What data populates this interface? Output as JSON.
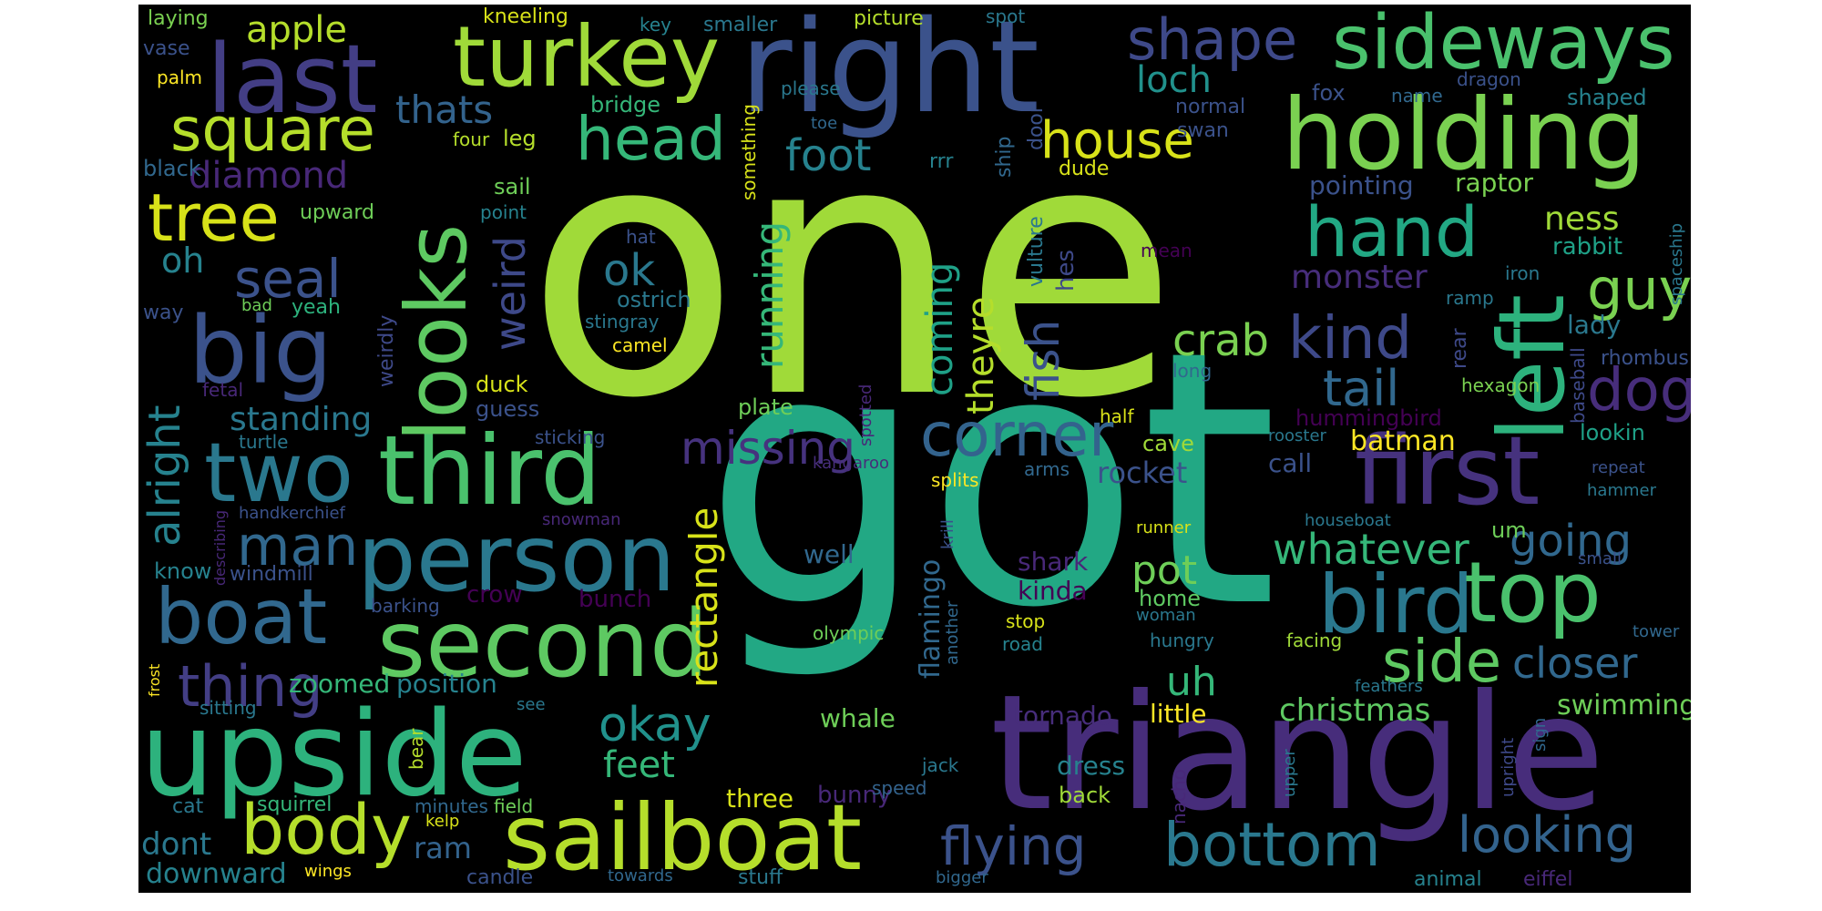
{
  "palette": {
    "yellow": "#fde725",
    "lime": "#b5de2b",
    "green": "#6ece58",
    "light-green": "#35b779",
    "teal": "#1f9e89",
    "cyan": "#26828e",
    "blue": "#31688e",
    "indigo": "#3e4989",
    "violet": "#482878",
    "purple": "#440154"
  },
  "words": [
    {
      "text": "one",
      "color": "#a0da39"
    },
    {
      "text": "got",
      "color": "#22a884"
    },
    {
      "text": "triangle",
      "color": "#472d7b"
    },
    {
      "text": "right",
      "color": "#3b528b"
    },
    {
      "text": "upside",
      "color": "#2db27d"
    },
    {
      "text": "sailboat",
      "color": "#b5de2b"
    },
    {
      "text": "second",
      "color": "#5ec962"
    },
    {
      "text": "third",
      "color": "#4ac16d"
    },
    {
      "text": "person",
      "color": "#2a788e"
    },
    {
      "text": "holding",
      "color": "#7ad151"
    },
    {
      "text": "first",
      "color": "#46327e"
    },
    {
      "text": "turkey",
      "color": "#a0da39"
    },
    {
      "text": "last",
      "color": "#433e85"
    },
    {
      "text": "sideways",
      "color": "#4ac16d"
    },
    {
      "text": "looks",
      "color": "#5ec962"
    },
    {
      "text": "left",
      "color": "#2db27d"
    },
    {
      "text": "big",
      "color": "#3b528b"
    },
    {
      "text": "two",
      "color": "#2a788e"
    },
    {
      "text": "boat",
      "color": "#31688e"
    },
    {
      "text": "body",
      "color": "#b5de2b"
    },
    {
      "text": "bird",
      "color": "#2a788e"
    },
    {
      "text": "top",
      "color": "#4ac16d"
    },
    {
      "text": "bottom",
      "color": "#2a788e"
    },
    {
      "text": "square",
      "color": "#b5de2b"
    },
    {
      "text": "head",
      "color": "#35b779"
    },
    {
      "text": "hand",
      "color": "#22a884"
    },
    {
      "text": "tree",
      "color": "#d8e219"
    },
    {
      "text": "house",
      "color": "#d8e219"
    },
    {
      "text": "shape",
      "color": "#3e4989"
    },
    {
      "text": "corner",
      "color": "#33638d"
    },
    {
      "text": "side",
      "color": "#5ec962"
    },
    {
      "text": "thing",
      "color": "#433e85"
    },
    {
      "text": "man",
      "color": "#31688e"
    },
    {
      "text": "looking",
      "color": "#33638d"
    },
    {
      "text": "flying",
      "color": "#3b528b"
    },
    {
      "text": "missing",
      "color": "#46327e"
    },
    {
      "text": "kind",
      "color": "#3e4989"
    },
    {
      "text": "dog",
      "color": "#472d7b"
    },
    {
      "text": "guy",
      "color": "#7ad151"
    },
    {
      "text": "seal",
      "color": "#3b528b"
    },
    {
      "text": "tail",
      "color": "#31688e"
    },
    {
      "text": "okay",
      "color": "#21918c"
    },
    {
      "text": "crab",
      "color": "#7ad151"
    },
    {
      "text": "fish",
      "color": "#3b528b"
    },
    {
      "text": "foot",
      "color": "#26828e"
    },
    {
      "text": "weird",
      "color": "#3e4989"
    },
    {
      "text": "whatever",
      "color": "#35b779"
    },
    {
      "text": "going",
      "color": "#31688e"
    },
    {
      "text": "closer",
      "color": "#31688e"
    },
    {
      "text": "feet",
      "color": "#35b779"
    },
    {
      "text": "ok",
      "color": "#2a788e"
    },
    {
      "text": "apple",
      "color": "#b5de2b"
    },
    {
      "text": "loch",
      "color": "#21918c"
    },
    {
      "text": "thats",
      "color": "#33638d"
    },
    {
      "text": "running",
      "color": "#35b779"
    },
    {
      "text": "coming",
      "color": "#1fa187"
    },
    {
      "text": "theyre",
      "color": "#b5de2b"
    },
    {
      "text": "rectangle",
      "color": "#d8e219"
    },
    {
      "text": "pot",
      "color": "#6ece58"
    },
    {
      "text": "uh",
      "color": "#35b779"
    },
    {
      "text": "diamond",
      "color": "#482878"
    },
    {
      "text": "monster",
      "color": "#472d7b"
    },
    {
      "text": "ness",
      "color": "#a0da39"
    },
    {
      "text": "rocket",
      "color": "#3b528b"
    },
    {
      "text": "christmas",
      "color": "#5ec962"
    },
    {
      "text": "swimming",
      "color": "#6ece58"
    },
    {
      "text": "alright",
      "color": "#26828e"
    },
    {
      "text": "standing",
      "color": "#2a788e"
    },
    {
      "text": "oh",
      "color": "#26828e"
    },
    {
      "text": "downward",
      "color": "#26828e"
    },
    {
      "text": "dont",
      "color": "#2a788e"
    },
    {
      "text": "ram",
      "color": "#33638d"
    },
    {
      "text": "batman",
      "color": "#fde725"
    },
    {
      "text": "little",
      "color": "#fde725"
    },
    {
      "text": "pointing",
      "color": "#3b528b"
    },
    {
      "text": "raptor",
      "color": "#7ad151"
    },
    {
      "text": "flamingo",
      "color": "#31688e"
    },
    {
      "text": "whale",
      "color": "#6ece58"
    },
    {
      "text": "zoomed",
      "color": "#35b779"
    },
    {
      "text": "position",
      "color": "#26828e"
    },
    {
      "text": "well",
      "color": "#31688e"
    },
    {
      "text": "three",
      "color": "#d8e219"
    },
    {
      "text": "bunny",
      "color": "#482878"
    },
    {
      "text": "shark",
      "color": "#482878"
    },
    {
      "text": "kinda",
      "color": "#440154"
    },
    {
      "text": "tornado",
      "color": "#472d7b"
    },
    {
      "text": "dress",
      "color": "#26828e"
    },
    {
      "text": "back",
      "color": "#a0da39"
    },
    {
      "text": "crow",
      "color": "#440154"
    },
    {
      "text": "bunch",
      "color": "#440154"
    },
    {
      "text": "home",
      "color": "#5ec962"
    },
    {
      "text": "rabbit",
      "color": "#1fa187"
    },
    {
      "text": "lady",
      "color": "#2a788e"
    },
    {
      "text": "hummingbird",
      "color": "#440154"
    },
    {
      "text": "lookin",
      "color": "#1fa187"
    },
    {
      "text": "cave",
      "color": "#a0da39"
    },
    {
      "text": "call",
      "color": "#3b528b"
    },
    {
      "text": "laying",
      "color": "#7ad151"
    },
    {
      "text": "kneeling",
      "color": "#d8e219"
    },
    {
      "text": "key",
      "color": "#26828e"
    },
    {
      "text": "smaller",
      "color": "#2a788e"
    },
    {
      "text": "picture",
      "color": "#b5de2b"
    },
    {
      "text": "spot",
      "color": "#2a788e"
    },
    {
      "text": "vase",
      "color": "#3b528b"
    },
    {
      "text": "palm",
      "color": "#fde725"
    },
    {
      "text": "bridge",
      "color": "#35b779"
    },
    {
      "text": "please",
      "color": "#2a788e"
    },
    {
      "text": "fox",
      "color": "#3b528b"
    },
    {
      "text": "name",
      "color": "#31688e"
    },
    {
      "text": "dragon",
      "color": "#3b528b"
    },
    {
      "text": "shaped",
      "color": "#26828e"
    },
    {
      "text": "normal",
      "color": "#3b528b"
    },
    {
      "text": "swan",
      "color": "#3b528b"
    },
    {
      "text": "toe",
      "color": "#31688e"
    },
    {
      "text": "four",
      "color": "#b5de2b"
    },
    {
      "text": "leg",
      "color": "#b5de2b"
    },
    {
      "text": "black",
      "color": "#31688e"
    },
    {
      "text": "something",
      "color": "#d8e219"
    },
    {
      "text": "rrr",
      "color": "#26828e"
    },
    {
      "text": "ship",
      "color": "#31688e"
    },
    {
      "text": "door",
      "color": "#3b528b"
    },
    {
      "text": "dude",
      "color": "#d8e219"
    },
    {
      "text": "sail",
      "color": "#6ece58"
    },
    {
      "text": "upward",
      "color": "#6ece58"
    },
    {
      "text": "point",
      "color": "#26828e"
    },
    {
      "text": "hat",
      "color": "#3b528b"
    },
    {
      "text": "vulture",
      "color": "#2a788e"
    },
    {
      "text": "hes",
      "color": "#3e4989"
    },
    {
      "text": "mean",
      "color": "#440154"
    },
    {
      "text": "iron",
      "color": "#2a788e"
    },
    {
      "text": "ramp",
      "color": "#2a788e"
    },
    {
      "text": "spaceship",
      "color": "#2a788e"
    },
    {
      "text": "baseball",
      "color": "#3e4989"
    },
    {
      "text": "rhombus",
      "color": "#3b528b"
    },
    {
      "text": "rear",
      "color": "#3e4989"
    },
    {
      "text": "hexagon",
      "color": "#7ad151"
    },
    {
      "text": "long",
      "color": "#31688e"
    },
    {
      "text": "half",
      "color": "#d8e219"
    },
    {
      "text": "way",
      "color": "#3b528b"
    },
    {
      "text": "bad",
      "color": "#6ece58"
    },
    {
      "text": "yeah",
      "color": "#2db27d"
    },
    {
      "text": "ostrich",
      "color": "#2a788e"
    },
    {
      "text": "stingray",
      "color": "#2a788e"
    },
    {
      "text": "camel",
      "color": "#fde725"
    },
    {
      "text": "weirdly",
      "color": "#3e4989"
    },
    {
      "text": "fetal",
      "color": "#482878"
    },
    {
      "text": "duck",
      "color": "#d8e219"
    },
    {
      "text": "guess",
      "color": "#3b528b"
    },
    {
      "text": "plate",
      "color": "#6ece58"
    },
    {
      "text": "spotted",
      "color": "#482878"
    },
    {
      "text": "turtle",
      "color": "#2a788e"
    },
    {
      "text": "sticking",
      "color": "#3b528b"
    },
    {
      "text": "kangaroo",
      "color": "#472d7b"
    },
    {
      "text": "splits",
      "color": "#fde725"
    },
    {
      "text": "arms",
      "color": "#31688e"
    },
    {
      "text": "rooster",
      "color": "#2a788e"
    },
    {
      "text": "repeat",
      "color": "#3b528b"
    },
    {
      "text": "hammer",
      "color": "#2a788e"
    },
    {
      "text": "handkerchief",
      "color": "#3b528b"
    },
    {
      "text": "snowman",
      "color": "#482878"
    },
    {
      "text": "describing",
      "color": "#482878"
    },
    {
      "text": "krill",
      "color": "#3b528b"
    },
    {
      "text": "runner",
      "color": "#d8e219"
    },
    {
      "text": "houseboat",
      "color": "#2a788e"
    },
    {
      "text": "um",
      "color": "#6ece58"
    },
    {
      "text": "small",
      "color": "#3b528b"
    },
    {
      "text": "know",
      "color": "#26828e"
    },
    {
      "text": "windmill",
      "color": "#3b528b"
    },
    {
      "text": "barking",
      "color": "#3b528b"
    },
    {
      "text": "woman",
      "color": "#2a788e"
    },
    {
      "text": "tower",
      "color": "#31688e"
    },
    {
      "text": "stop",
      "color": "#d8e219"
    },
    {
      "text": "road",
      "color": "#26828e"
    },
    {
      "text": "hungry",
      "color": "#2a788e"
    },
    {
      "text": "facing",
      "color": "#a0da39"
    },
    {
      "text": "olympic",
      "color": "#6ece58"
    },
    {
      "text": "another",
      "color": "#31688e"
    },
    {
      "text": "feathers",
      "color": "#2a788e"
    },
    {
      "text": "frost",
      "color": "#fde725"
    },
    {
      "text": "sitting",
      "color": "#2a788e"
    },
    {
      "text": "see",
      "color": "#2a788e"
    },
    {
      "text": "upright",
      "color": "#3e4989"
    },
    {
      "text": "sign",
      "color": "#31688e"
    },
    {
      "text": "bear",
      "color": "#b5de2b"
    },
    {
      "text": "jack",
      "color": "#2a788e"
    },
    {
      "text": "speed",
      "color": "#33638d"
    },
    {
      "text": "nacho",
      "color": "#482878"
    },
    {
      "text": "upper",
      "color": "#2a788e"
    },
    {
      "text": "cat",
      "color": "#2a788e"
    },
    {
      "text": "squirrel",
      "color": "#35b779"
    },
    {
      "text": "minutes",
      "color": "#31688e"
    },
    {
      "text": "field",
      "color": "#6ece58"
    },
    {
      "text": "kelp",
      "color": "#d8e219"
    },
    {
      "text": "wings",
      "color": "#fde725"
    },
    {
      "text": "candle",
      "color": "#3b528b"
    },
    {
      "text": "towards",
      "color": "#31688e"
    },
    {
      "text": "stuff",
      "color": "#2a788e"
    },
    {
      "text": "bigger",
      "color": "#31688e"
    },
    {
      "text": "animal",
      "color": "#26828e"
    },
    {
      "text": "eiffel",
      "color": "#482878"
    }
  ]
}
